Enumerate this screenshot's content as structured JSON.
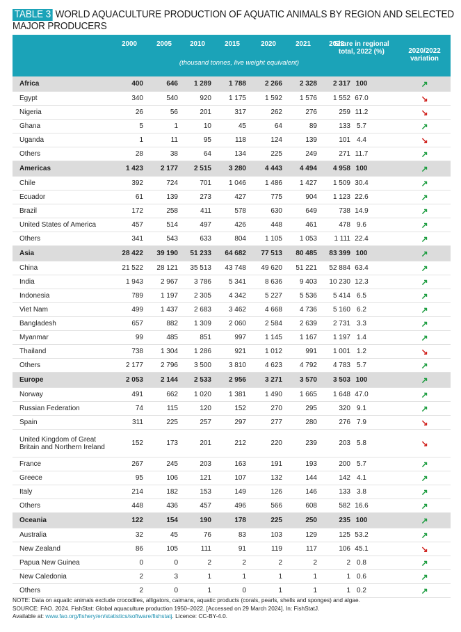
{
  "title": {
    "tag": "TABLE 3",
    "line1": "WORLD AQUACULTURE PRODUCTION OF AQUATIC ANIMALS BY REGION AND SELECTED",
    "line2": "MAJOR PRODUCERS"
  },
  "header": {
    "years": [
      "2000",
      "2005",
      "2010",
      "2015",
      "2020",
      "2021",
      "2022"
    ],
    "share": "Share in regional total, 2022 (%)",
    "variation": "2020/2022 variation",
    "units": "(thousand tonnes, live weight equivalent)"
  },
  "arrows": {
    "up": "↗",
    "down": "↘",
    "up_color": "#1a9c3e",
    "down_color": "#d0201c"
  },
  "rows": [
    {
      "name": "Africa",
      "region": true,
      "vals": [
        "400",
        "646",
        "1 289",
        "1 788",
        "2 266",
        "2 328",
        "2 317"
      ],
      "share": "100",
      "trend": "up"
    },
    {
      "name": "Egypt",
      "vals": [
        "340",
        "540",
        "920",
        "1 175",
        "1 592",
        "1 576",
        "1 552"
      ],
      "share": "67.0",
      "trend": "down"
    },
    {
      "name": "Nigeria",
      "vals": [
        "26",
        "56",
        "201",
        "317",
        "262",
        "276",
        "259"
      ],
      "share": "11.2",
      "trend": "down"
    },
    {
      "name": "Ghana",
      "vals": [
        "5",
        "1",
        "10",
        "45",
        "64",
        "89",
        "133"
      ],
      "share": "5.7",
      "trend": "up"
    },
    {
      "name": "Uganda",
      "vals": [
        "1",
        "11",
        "95",
        "118",
        "124",
        "139",
        "101"
      ],
      "share": "4.4",
      "trend": "down"
    },
    {
      "name": "Others",
      "vals": [
        "28",
        "38",
        "64",
        "134",
        "225",
        "249",
        "271"
      ],
      "share": "11.7",
      "trend": "up"
    },
    {
      "name": "Americas",
      "region": true,
      "vals": [
        "1 423",
        "2 177",
        "2 515",
        "3 280",
        "4 443",
        "4 494",
        "4 958"
      ],
      "share": "100",
      "trend": "up"
    },
    {
      "name": "Chile",
      "vals": [
        "392",
        "724",
        "701",
        "1 046",
        "1 486",
        "1 427",
        "1 509"
      ],
      "share": "30.4",
      "trend": "up"
    },
    {
      "name": "Ecuador",
      "vals": [
        "61",
        "139",
        "273",
        "427",
        "775",
        "904",
        "1 123"
      ],
      "share": "22.6",
      "trend": "up"
    },
    {
      "name": "Brazil",
      "vals": [
        "172",
        "258",
        "411",
        "578",
        "630",
        "649",
        "738"
      ],
      "share": "14.9",
      "trend": "up"
    },
    {
      "name": "United States of America",
      "vals": [
        "457",
        "514",
        "497",
        "426",
        "448",
        "461",
        "478"
      ],
      "share": "9.6",
      "trend": "up"
    },
    {
      "name": "Others",
      "vals": [
        "341",
        "543",
        "633",
        "804",
        "1 105",
        "1 053",
        "1 111"
      ],
      "share": "22.4",
      "trend": "up"
    },
    {
      "name": "Asia",
      "region": true,
      "vals": [
        "28 422",
        "39 190",
        "51 233",
        "64 682",
        "77 513",
        "80 485",
        "83 399"
      ],
      "share": "100",
      "trend": "up"
    },
    {
      "name": "China",
      "vals": [
        "21 522",
        "28 121",
        "35 513",
        "43 748",
        "49 620",
        "51 221",
        "52 884"
      ],
      "share": "63.4",
      "trend": "up"
    },
    {
      "name": "India",
      "vals": [
        "1 943",
        "2 967",
        "3 786",
        "5 341",
        "8 636",
        "9 403",
        "10 230"
      ],
      "share": "12.3",
      "trend": "up"
    },
    {
      "name": "Indonesia",
      "vals": [
        "789",
        "1 197",
        "2 305",
        "4 342",
        "5 227",
        "5 536",
        "5 414"
      ],
      "share": "6.5",
      "trend": "up"
    },
    {
      "name": "Viet Nam",
      "vals": [
        "499",
        "1 437",
        "2 683",
        "3 462",
        "4 668",
        "4 736",
        "5 160"
      ],
      "share": "6.2",
      "trend": "up"
    },
    {
      "name": "Bangladesh",
      "vals": [
        "657",
        "882",
        "1 309",
        "2 060",
        "2 584",
        "2 639",
        "2 731"
      ],
      "share": "3.3",
      "trend": "up"
    },
    {
      "name": "Myanmar",
      "vals": [
        "99",
        "485",
        "851",
        "997",
        "1 145",
        "1 167",
        "1 197"
      ],
      "share": "1.4",
      "trend": "up"
    },
    {
      "name": "Thailand",
      "vals": [
        "738",
        "1 304",
        "1 286",
        "921",
        "1 012",
        "991",
        "1 001"
      ],
      "share": "1.2",
      "trend": "down"
    },
    {
      "name": "Others",
      "vals": [
        "2 177",
        "2 796",
        "3 500",
        "3 810",
        "4 623",
        "4 792",
        "4 783"
      ],
      "share": "5.7",
      "trend": "up"
    },
    {
      "name": "Europe",
      "region": true,
      "vals": [
        "2 053",
        "2 144",
        "2 533",
        "2 956",
        "3 271",
        "3 570",
        "3 503"
      ],
      "share": "100",
      "trend": "up"
    },
    {
      "name": "Norway",
      "vals": [
        "491",
        "662",
        "1 020",
        "1 381",
        "1 490",
        "1 665",
        "1 648"
      ],
      "share": "47.0",
      "trend": "up"
    },
    {
      "name": "Russian Federation",
      "vals": [
        "74",
        "115",
        "120",
        "152",
        "270",
        "295",
        "320"
      ],
      "share": "9.1",
      "trend": "up"
    },
    {
      "name": "Spain",
      "vals": [
        "311",
        "225",
        "257",
        "297",
        "277",
        "280",
        "276"
      ],
      "share": "7.9",
      "trend": "down"
    },
    {
      "name": "United Kingdom of Great Britain and Northern Ireland",
      "tall": true,
      "vals": [
        "152",
        "173",
        "201",
        "212",
        "220",
        "239",
        "203"
      ],
      "share": "5.8",
      "trend": "down"
    },
    {
      "name": "France",
      "vals": [
        "267",
        "245",
        "203",
        "163",
        "191",
        "193",
        "200"
      ],
      "share": "5.7",
      "trend": "up"
    },
    {
      "name": "Greece",
      "vals": [
        "95",
        "106",
        "121",
        "107",
        "132",
        "144",
        "142"
      ],
      "share": "4.1",
      "trend": "up"
    },
    {
      "name": "Italy",
      "vals": [
        "214",
        "182",
        "153",
        "149",
        "126",
        "146",
        "133"
      ],
      "share": "3.8",
      "trend": "up"
    },
    {
      "name": "Others",
      "vals": [
        "448",
        "436",
        "457",
        "496",
        "566",
        "608",
        "582"
      ],
      "share": "16.6",
      "trend": "up"
    },
    {
      "name": "Oceania",
      "region": true,
      "vals": [
        "122",
        "154",
        "190",
        "178",
        "225",
        "250",
        "235"
      ],
      "share": "100",
      "trend": "up"
    },
    {
      "name": "Australia",
      "vals": [
        "32",
        "45",
        "76",
        "83",
        "103",
        "129",
        "125"
      ],
      "share": "53.2",
      "trend": "up"
    },
    {
      "name": "New Zealand",
      "vals": [
        "86",
        "105",
        "111",
        "91",
        "119",
        "117",
        "106"
      ],
      "share": "45.1",
      "trend": "down"
    },
    {
      "name": "Papua New Guinea",
      "vals": [
        "0",
        "0",
        "2",
        "2",
        "2",
        "2",
        "2"
      ],
      "share": "0.8",
      "trend": "up"
    },
    {
      "name": "New Caledonia",
      "vals": [
        "2",
        "3",
        "1",
        "1",
        "1",
        "1",
        "1"
      ],
      "share": "0.6",
      "trend": "up"
    },
    {
      "name": "Others",
      "vals": [
        "2",
        "0",
        "1",
        "0",
        "1",
        "1",
        "1"
      ],
      "share": "0.2",
      "trend": "up"
    }
  ],
  "notes": {
    "note": "NOTE: Data on aquatic animals exclude crocodiles, alligators, caimans, aquatic products (corals, pearls, shells and sponges) and algae.",
    "source": "SOURCE: FAO. 2024. FishStat: Global aquaculture production 1950–2022. [Accessed on 29 March 2024]. In: FishStatJ.",
    "available_prefix": "Available at:",
    "link": "www.fao.org/fishery/en/statistics/software/fishstatj",
    "licence": ". Licence: CC-BY-4.0."
  }
}
